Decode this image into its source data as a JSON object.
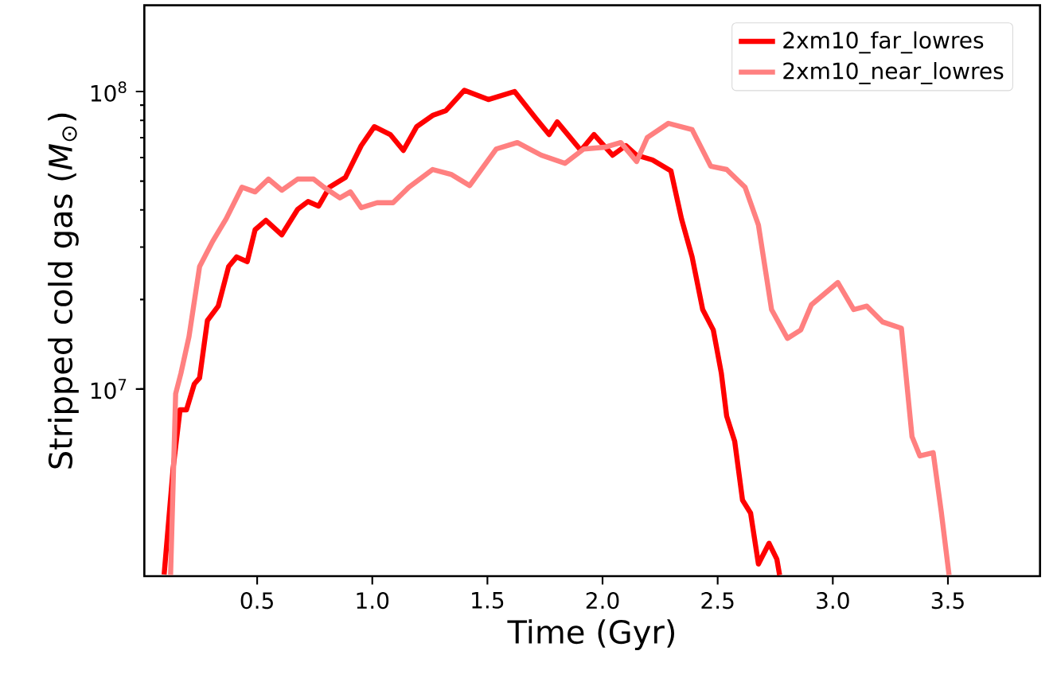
{
  "chart_data": {
    "type": "line",
    "xlabel": "Time (Gyr)",
    "ylabel": "Stripped cold gas (*M*$_{⊙}$)",
    "log": "y",
    "grid": false,
    "legend": "top right",
    "line_style": "solid",
    "marker": "none",
    "xlim": [
      0.01,
      3.9
    ],
    "xticks": [
      0.5,
      {
        "value": 1.0,
        "label": "1.0"
      },
      1.5,
      {
        "value": 2.0,
        "label": "2.0"
      },
      2.5,
      {
        "value": 3.0,
        "label": "3.0"
      },
      3.5
    ],
    "ylim": [
      2350000.0,
      195000000.0
    ],
    "yticks": [
      {
        "value": 10000000.0,
        "label": "10$^{7}$"
      },
      {
        "value": 100000000.0,
        "label": "10$^{8}$"
      }
    ],
    "series": [
      {
        "name": "2xm10_far_lowres",
        "color": "#ff0000",
        "x": [
          0.096,
          0.135,
          0.165,
          0.193,
          0.227,
          0.25,
          0.284,
          0.331,
          0.376,
          0.411,
          0.457,
          0.491,
          0.538,
          0.607,
          0.676,
          0.721,
          0.767,
          0.814,
          0.883,
          0.952,
          1.009,
          1.078,
          1.135,
          1.193,
          1.262,
          1.32,
          1.4,
          1.504,
          1.618,
          1.711,
          1.768,
          1.803,
          1.849,
          1.906,
          1.963,
          2.044,
          2.101,
          2.148,
          2.217,
          2.297,
          2.343,
          2.389,
          2.435,
          2.481,
          2.516,
          2.539,
          2.574,
          2.608,
          2.643,
          2.677,
          2.723,
          2.757,
          2.769
        ],
        "values": [
          2380000.0,
          5410000.0,
          8510000.0,
          8510000.0,
          10400000.0,
          10900000.0,
          17000000.0,
          19000000.0,
          25800000.0,
          27800000.0,
          26800000.0,
          34300000.0,
          36900000.0,
          33000000.0,
          40200000.0,
          42700000.0,
          41200000.0,
          47700000.0,
          51400000.0,
          65800000.0,
          76200000.0,
          71700000.0,
          63400000.0,
          76200000.0,
          83100000.0,
          86300000.0,
          101000000.0,
          94000000.0,
          100000000.0,
          81100000.0,
          71700000.0,
          79100000.0,
          71700000.0,
          63400000.0,
          71700000.0,
          61100000.0,
          65800000.0,
          61100000.0,
          58900000.0,
          54100000.0,
          37300000.0,
          27800000.0,
          18500000.0,
          15800000.0,
          11300000.0,
          8110000.0,
          6670000.0,
          4230000.0,
          3830000.0,
          2580000.0,
          3030000.0,
          2680000.0,
          2370000.0
        ]
      },
      {
        "name": "2xm10_near_lowres",
        "color": "#ff8080",
        "x": [
          0.124,
          0.146,
          0.169,
          0.204,
          0.25,
          0.307,
          0.365,
          0.434,
          0.491,
          0.549,
          0.607,
          0.676,
          0.745,
          0.79,
          0.859,
          0.905,
          0.952,
          1.021,
          1.09,
          1.159,
          1.262,
          1.342,
          1.423,
          1.538,
          1.63,
          1.734,
          1.837,
          1.918,
          2.01,
          2.079,
          2.148,
          2.194,
          2.286,
          2.389,
          2.47,
          2.539,
          2.619,
          2.677,
          2.734,
          2.803,
          2.861,
          2.907,
          3.022,
          3.091,
          3.148,
          3.217,
          3.298,
          3.344,
          3.378,
          3.436,
          3.471,
          3.505
        ],
        "values": [
          2370000.0,
          9640000.0,
          11300000.0,
          15000000.0,
          25800000.0,
          31400000.0,
          37300000.0,
          47700000.0,
          46000000.0,
          50800000.0,
          46600000.0,
          50800000.0,
          50800000.0,
          47700000.0,
          43900000.0,
          46000000.0,
          40700000.0,
          42300000.0,
          42300000.0,
          47700000.0,
          54700000.0,
          52700000.0,
          48300000.0,
          64100000.0,
          67400000.0,
          61100000.0,
          57400000.0,
          64100000.0,
          65000000.0,
          67400000.0,
          58200000.0,
          70000000.0,
          78200000.0,
          74500000.0,
          56100000.0,
          54700000.0,
          47700000.0,
          35600000.0,
          18500000.0,
          14800000.0,
          15800000.0,
          19200000.0,
          22800000.0,
          18500000.0,
          19000000.0,
          16800000.0,
          16000000.0,
          6920000.0,
          5960000.0,
          6110000.0,
          3870000.0,
          2370000.0
        ]
      }
    ]
  }
}
